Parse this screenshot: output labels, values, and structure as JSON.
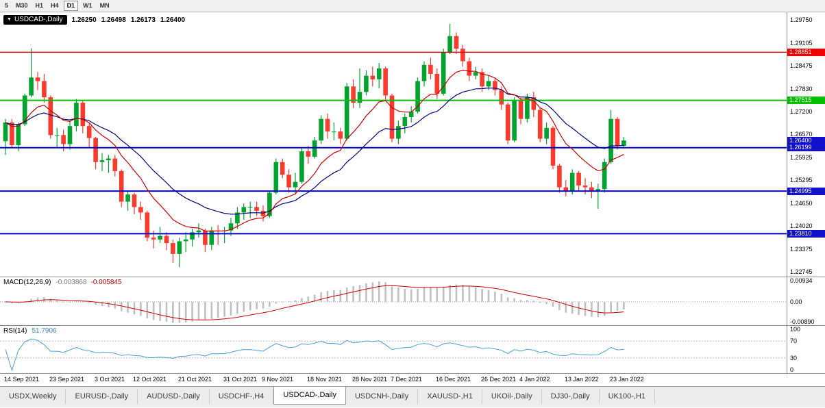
{
  "toolbar": {
    "timeframes": [
      {
        "label": "5",
        "active": false
      },
      {
        "label": "M30",
        "active": false
      },
      {
        "label": "H1",
        "active": false
      },
      {
        "label": "H4",
        "active": false
      },
      {
        "label": "D1",
        "active": true
      },
      {
        "label": "W1",
        "active": false
      },
      {
        "label": "MN",
        "active": false
      }
    ]
  },
  "chart_header": {
    "arrow": "▼",
    "symbol": "USDCAD-,Daily",
    "open": "1.26250",
    "high": "1.26498",
    "low": "1.26173",
    "close": "1.26400"
  },
  "levels": [
    {
      "price": 1.28851,
      "color": "#f20000",
      "width": 1.4
    },
    {
      "price": 1.27515,
      "color": "#00c000",
      "width": 2
    },
    {
      "price": 1.26199,
      "color": "#0000cc",
      "width": 2
    },
    {
      "price": 1.24995,
      "color": "#0000cc",
      "width": 2
    },
    {
      "price": 1.2381,
      "color": "#0000cc",
      "width": 2
    }
  ],
  "price_axis": {
    "labels": [
      {
        "text": "1.29750",
        "price": 1.2975,
        "type": "plain"
      },
      {
        "text": "1.29105",
        "price": 1.29105,
        "type": "plain"
      },
      {
        "text": "1.28851",
        "price": 1.28851,
        "type": "badge",
        "color": "#f20000"
      },
      {
        "text": "1.28475",
        "price": 1.28475,
        "type": "plain"
      },
      {
        "text": "1.27830",
        "price": 1.2783,
        "type": "plain"
      },
      {
        "text": "1.27515",
        "price": 1.27515,
        "type": "badge",
        "color": "#00c000"
      },
      {
        "text": "1.27200",
        "price": 1.272,
        "type": "plain"
      },
      {
        "text": "1.26570",
        "price": 1.2657,
        "type": "plain"
      },
      {
        "text": "1.26400",
        "price": 1.264,
        "type": "badge",
        "color": "#1111cc",
        "current": true
      },
      {
        "text": "1.26199",
        "price": 1.26199,
        "type": "badge",
        "color": "#1111cc"
      },
      {
        "text": "1.25925",
        "price": 1.25925,
        "type": "plain"
      },
      {
        "text": "1.25295",
        "price": 1.25295,
        "type": "plain"
      },
      {
        "text": "1.24995",
        "price": 1.24995,
        "type": "badge",
        "color": "#1111cc"
      },
      {
        "text": "1.24650",
        "price": 1.2465,
        "type": "plain"
      },
      {
        "text": "1.24020",
        "price": 1.2402,
        "type": "plain"
      },
      {
        "text": "1.23810",
        "price": 1.2381,
        "type": "badge",
        "color": "#1111cc"
      },
      {
        "text": "1.23375",
        "price": 1.23375,
        "type": "plain"
      },
      {
        "text": "1.22745",
        "price": 1.22745,
        "type": "plain"
      }
    ]
  },
  "macd_panel": {
    "title": "MACD(12,26,9)",
    "value_main": "-0.003868",
    "value_signal": "-0.005845",
    "axis": [
      {
        "text": "0.00934",
        "value": 0.00934
      },
      {
        "text": "0.00",
        "value": 0
      },
      {
        "text": "-0.00890",
        "value": -0.0089
      }
    ]
  },
  "rsi_panel": {
    "title": "RSI(14)",
    "value": "51.7906",
    "levels": [
      70,
      30
    ],
    "axis": [
      {
        "text": "100",
        "value": 100
      },
      {
        "text": "70",
        "value": 70
      },
      {
        "text": "30",
        "value": 30
      },
      {
        "text": "0",
        "value": 0
      }
    ]
  },
  "date_axis": {
    "labels": [
      "14 Sep 2021",
      "23 Sep 2021",
      "3 Oct 2021",
      "12 Oct 2021",
      "21 Oct 2021",
      "31 Oct 2021",
      "9 Nov 2021",
      "18 Nov 2021",
      "28 Nov 2021",
      "7 Dec 2021",
      "16 Dec 2021",
      "26 Dec 2021",
      "4 Jan 2022",
      "13 Jan 2022",
      "23 Jan 2022"
    ]
  },
  "tabs": {
    "items": [
      {
        "label": "USDX,Weekly",
        "active": false
      },
      {
        "label": "EURUSD-,Daily",
        "active": false
      },
      {
        "label": "AUDUSD-,Daily",
        "active": false
      },
      {
        "label": "USDCHF-,H4",
        "active": false
      },
      {
        "label": "USDCAD-,Daily",
        "active": true
      },
      {
        "label": "USDCNH-,Daily",
        "active": false
      },
      {
        "label": "XAUUSD-,H1",
        "active": false
      },
      {
        "label": "UKOil-,Daily",
        "active": false
      },
      {
        "label": "DJ30-,Daily",
        "active": false
      },
      {
        "label": "UK100-,H1",
        "active": false
      }
    ]
  },
  "chart_data": {
    "type": "candlestick",
    "symbol": "USDCAD",
    "timeframe": "Daily",
    "price_range": [
      1.2262,
      1.2996
    ],
    "macd_range": [
      -0.01,
      0.0105
    ],
    "ma_periods": [
      10,
      21
    ],
    "date_label_bar_indices": [
      0,
      7,
      14,
      20,
      27,
      34,
      40,
      47,
      54,
      60,
      67,
      74,
      80,
      87,
      94
    ],
    "colors": {
      "bull": "#00a32e",
      "bear": "#f93a2c",
      "ma_fast": "#cc0000",
      "ma_slow": "#000080",
      "macd_hist": "#c0c0c0",
      "macd_signal": "#cc0000",
      "rsi": "#4a9ed9",
      "sub_level": "#b8b8b8"
    },
    "candles": [
      [
        1.2638,
        1.27,
        1.26,
        1.269
      ],
      [
        1.269,
        1.27,
        1.262,
        1.2627
      ],
      [
        1.2627,
        1.269,
        1.261,
        1.2685
      ],
      [
        1.2685,
        1.277,
        1.268,
        1.2765
      ],
      [
        1.2765,
        1.2896,
        1.276,
        1.2815
      ],
      [
        1.2815,
        1.283,
        1.278,
        1.2805
      ],
      [
        1.2805,
        1.2825,
        1.2745,
        1.276
      ],
      [
        1.276,
        1.2765,
        1.2645,
        1.2655
      ],
      [
        1.2655,
        1.2675,
        1.262,
        1.2655
      ],
      [
        1.2655,
        1.267,
        1.261,
        1.263
      ],
      [
        1.263,
        1.2695,
        1.2615,
        1.268
      ],
      [
        1.268,
        1.2755,
        1.2665,
        1.2745
      ],
      [
        1.2745,
        1.275,
        1.266,
        1.268
      ],
      [
        1.268,
        1.269,
        1.262,
        1.2647
      ],
      [
        1.2647,
        1.265,
        1.256,
        1.258
      ],
      [
        1.258,
        1.2605,
        1.2555,
        1.2585
      ],
      [
        1.2585,
        1.26,
        1.255,
        1.259
      ],
      [
        1.259,
        1.26,
        1.254,
        1.2555
      ],
      [
        1.2555,
        1.256,
        1.2455,
        1.247
      ],
      [
        1.247,
        1.25,
        1.2445,
        1.249
      ],
      [
        1.249,
        1.2495,
        1.2435,
        1.2455
      ],
      [
        1.2455,
        1.247,
        1.242,
        1.244
      ],
      [
        1.244,
        1.2445,
        1.236,
        1.237
      ],
      [
        1.237,
        1.239,
        1.234,
        1.2365
      ],
      [
        1.2365,
        1.24,
        1.2355,
        1.2375
      ],
      [
        1.2375,
        1.2385,
        1.2335,
        1.2355
      ],
      [
        1.2355,
        1.2365,
        1.23,
        1.2325
      ],
      [
        1.2325,
        1.237,
        1.2288,
        1.236
      ],
      [
        1.236,
        1.2385,
        1.233,
        1.2365
      ],
      [
        1.2365,
        1.2395,
        1.2345,
        1.2385
      ],
      [
        1.2385,
        1.241,
        1.237,
        1.239
      ],
      [
        1.239,
        1.2395,
        1.233,
        1.235
      ],
      [
        1.235,
        1.24,
        1.2335,
        1.239
      ],
      [
        1.239,
        1.2405,
        1.235,
        1.2388
      ],
      [
        1.2388,
        1.24,
        1.2355,
        1.239
      ],
      [
        1.239,
        1.2425,
        1.2375,
        1.241
      ],
      [
        1.241,
        1.2455,
        1.2395,
        1.244
      ],
      [
        1.244,
        1.2465,
        1.242,
        1.2455
      ],
      [
        1.2455,
        1.247,
        1.2425,
        1.2455
      ],
      [
        1.2455,
        1.247,
        1.243,
        1.2445
      ],
      [
        1.2445,
        1.246,
        1.2415,
        1.243
      ],
      [
        1.243,
        1.25,
        1.2425,
        1.2495
      ],
      [
        1.2495,
        1.259,
        1.249,
        1.258
      ],
      [
        1.258,
        1.259,
        1.2535,
        1.2545
      ],
      [
        1.2545,
        1.256,
        1.2495,
        1.251
      ],
      [
        1.251,
        1.255,
        1.249,
        1.2525
      ],
      [
        1.2525,
        1.262,
        1.252,
        1.261
      ],
      [
        1.261,
        1.2625,
        1.2575,
        1.2595
      ],
      [
        1.2595,
        1.265,
        1.259,
        1.264
      ],
      [
        1.264,
        1.271,
        1.263,
        1.27
      ],
      [
        1.27,
        1.2715,
        1.2645,
        1.2665
      ],
      [
        1.2665,
        1.269,
        1.264,
        1.2665
      ],
      [
        1.2665,
        1.2675,
        1.263,
        1.2645
      ],
      [
        1.2645,
        1.28,
        1.264,
        1.279
      ],
      [
        1.279,
        1.281,
        1.273,
        1.2745
      ],
      [
        1.2745,
        1.284,
        1.273,
        1.2775
      ],
      [
        1.2775,
        1.2835,
        1.2765,
        1.282
      ],
      [
        1.282,
        1.2845,
        1.279,
        1.281
      ],
      [
        1.281,
        1.2855,
        1.2785,
        1.284
      ],
      [
        1.284,
        1.2845,
        1.275,
        1.2765
      ],
      [
        1.2765,
        1.277,
        1.2635,
        1.2645
      ],
      [
        1.2645,
        1.2695,
        1.263,
        1.268
      ],
      [
        1.268,
        1.2715,
        1.266,
        1.2705
      ],
      [
        1.2705,
        1.2735,
        1.269,
        1.272
      ],
      [
        1.272,
        1.2815,
        1.2715,
        1.2805
      ],
      [
        1.2805,
        1.286,
        1.279,
        1.285
      ],
      [
        1.285,
        1.287,
        1.281,
        1.2825
      ],
      [
        1.2825,
        1.284,
        1.2755,
        1.277
      ],
      [
        1.277,
        1.2895,
        1.2765,
        1.2885
      ],
      [
        1.2885,
        1.2964,
        1.288,
        1.293
      ],
      [
        1.293,
        1.294,
        1.288,
        1.2895
      ],
      [
        1.2895,
        1.2905,
        1.2845,
        1.286
      ],
      [
        1.286,
        1.287,
        1.2805,
        1.282
      ],
      [
        1.282,
        1.2845,
        1.281,
        1.283
      ],
      [
        1.283,
        1.284,
        1.2775,
        1.279
      ],
      [
        1.279,
        1.282,
        1.278,
        1.2805
      ],
      [
        1.2805,
        1.2815,
        1.2765,
        1.278
      ],
      [
        1.278,
        1.279,
        1.2725,
        1.274
      ],
      [
        1.274,
        1.2745,
        1.263,
        1.264
      ],
      [
        1.264,
        1.276,
        1.2635,
        1.275
      ],
      [
        1.275,
        1.276,
        1.2685,
        1.27
      ],
      [
        1.27,
        1.277,
        1.269,
        1.276
      ],
      [
        1.276,
        1.2775,
        1.2705,
        1.2725
      ],
      [
        1.2725,
        1.273,
        1.2635,
        1.2645
      ],
      [
        1.2645,
        1.269,
        1.263,
        1.2675
      ],
      [
        1.2675,
        1.268,
        1.256,
        1.257
      ],
      [
        1.257,
        1.2575,
        1.2495,
        1.251
      ],
      [
        1.251,
        1.253,
        1.2485,
        1.25
      ],
      [
        1.25,
        1.256,
        1.249,
        1.255
      ],
      [
        1.255,
        1.2555,
        1.25,
        1.2515
      ],
      [
        1.2515,
        1.2535,
        1.249,
        1.251
      ],
      [
        1.251,
        1.2525,
        1.248,
        1.25
      ],
      [
        1.25,
        1.252,
        1.245,
        1.2505
      ],
      [
        1.2505,
        1.259,
        1.2495,
        1.258
      ],
      [
        1.258,
        1.2725,
        1.2575,
        1.27
      ],
      [
        1.27,
        1.2705,
        1.2615,
        1.2625
      ],
      [
        1.2625,
        1.26498,
        1.26173,
        1.264
      ]
    ]
  }
}
